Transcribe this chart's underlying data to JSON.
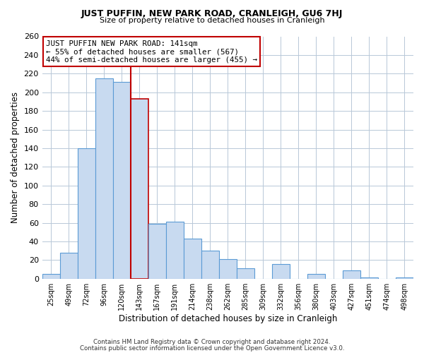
{
  "title": "JUST PUFFIN, NEW PARK ROAD, CRANLEIGH, GU6 7HJ",
  "subtitle": "Size of property relative to detached houses in Cranleigh",
  "xlabel": "Distribution of detached houses by size in Cranleigh",
  "ylabel": "Number of detached properties",
  "bar_labels": [
    "25sqm",
    "49sqm",
    "72sqm",
    "96sqm",
    "120sqm",
    "143sqm",
    "167sqm",
    "191sqm",
    "214sqm",
    "238sqm",
    "262sqm",
    "285sqm",
    "309sqm",
    "332sqm",
    "356sqm",
    "380sqm",
    "403sqm",
    "427sqm",
    "451sqm",
    "474sqm",
    "498sqm"
  ],
  "bar_values": [
    5,
    28,
    140,
    215,
    211,
    193,
    59,
    61,
    43,
    30,
    21,
    11,
    0,
    16,
    0,
    5,
    0,
    9,
    1,
    0,
    1
  ],
  "bar_color": "#c8daf0",
  "bar_edge_color": "#5b9bd5",
  "highlight_bar_index": 5,
  "vline_color": "#c00000",
  "annotation_title": "JUST PUFFIN NEW PARK ROAD: 141sqm",
  "annotation_line1": "← 55% of detached houses are smaller (567)",
  "annotation_line2": "44% of semi-detached houses are larger (455) →",
  "annotation_box_edge_color": "#c00000",
  "ylim": [
    0,
    260
  ],
  "yticks": [
    0,
    20,
    40,
    60,
    80,
    100,
    120,
    140,
    160,
    180,
    200,
    220,
    240,
    260
  ],
  "footer1": "Contains HM Land Registry data © Crown copyright and database right 2024.",
  "footer2": "Contains public sector information licensed under the Open Government Licence v3.0.",
  "background_color": "#ffffff",
  "grid_color": "#b8c8d8"
}
